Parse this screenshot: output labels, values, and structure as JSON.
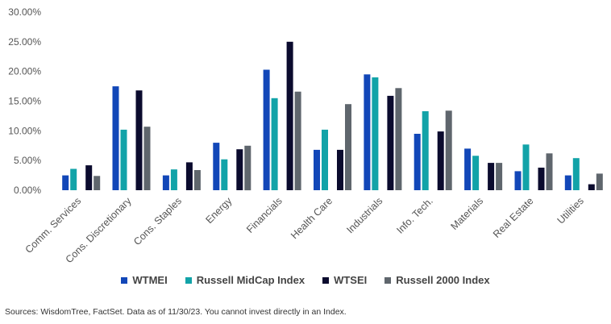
{
  "chart_data": {
    "type": "bar",
    "categories": [
      "Comm. Services",
      "Cons. Discretionary",
      "Cons. Staples",
      "Energy",
      "Financials",
      "Health Care",
      "Industrials",
      "Info. Tech.",
      "Materials",
      "Real Estate",
      "Utilities"
    ],
    "series": [
      {
        "name": "WTMEI",
        "color": "#1247b8",
        "values": [
          2.5,
          17.5,
          2.5,
          8.0,
          20.3,
          6.8,
          19.5,
          9.5,
          7.0,
          3.2,
          2.5
        ]
      },
      {
        "name": "Russell MidCap Index",
        "color": "#12a3a8",
        "values": [
          3.6,
          10.2,
          3.5,
          5.2,
          15.5,
          10.2,
          19.0,
          13.3,
          5.8,
          7.7,
          5.4
        ]
      },
      {
        "name": "WTSEI",
        "color": "#0b0b2e",
        "values": [
          4.2,
          16.8,
          4.7,
          6.9,
          25.0,
          6.8,
          15.9,
          9.9,
          4.6,
          3.8,
          1.0
        ]
      },
      {
        "name": "Russell 2000 Index",
        "color": "#5f666d",
        "values": [
          2.4,
          10.7,
          3.4,
          7.5,
          16.6,
          14.5,
          17.2,
          13.4,
          4.6,
          6.2,
          2.8
        ]
      }
    ],
    "yticks": [
      "0.00%",
      "5.00%",
      "10.00%",
      "15.00%",
      "20.00%",
      "25.00%",
      "30.00%"
    ],
    "ylim": [
      0,
      30
    ],
    "title": "",
    "xlabel": "",
    "ylabel": "",
    "grid": false,
    "legend_position": "bottom"
  },
  "footer": {
    "source": "Sources: WisdomTree, FactSet. Data as of 11/30/23. You cannot invest directly in an Index."
  }
}
